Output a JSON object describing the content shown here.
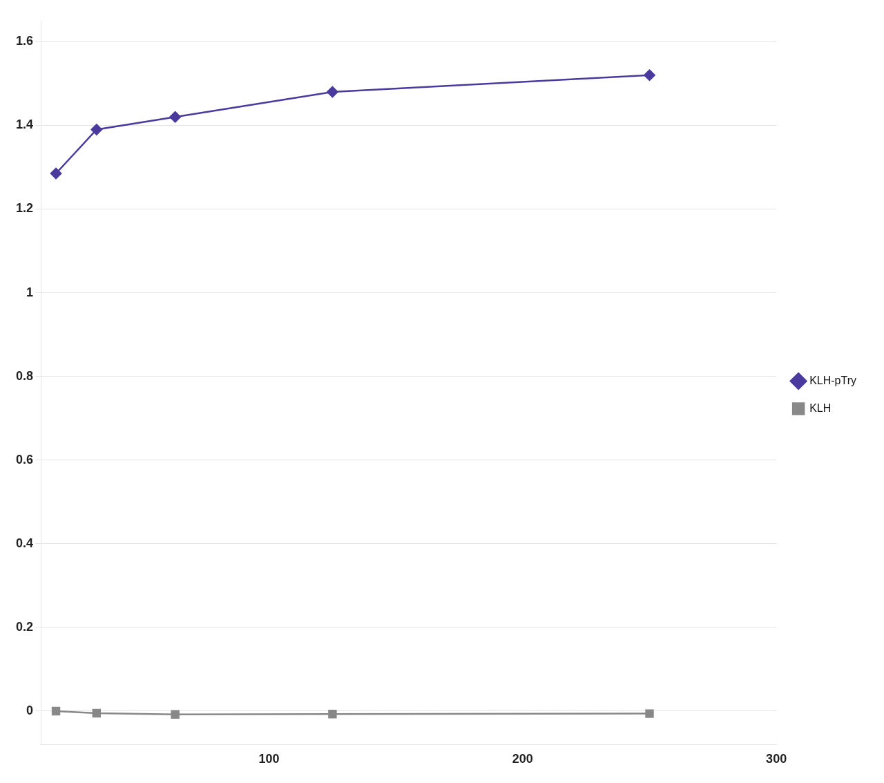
{
  "chart_data": {
    "type": "line",
    "series": [
      {
        "name": "KLH-pTry",
        "color": "#4b3a9e",
        "marker": "diamond",
        "x": [
          16,
          32,
          63,
          125,
          250
        ],
        "values": [
          1.285,
          1.39,
          1.42,
          1.48,
          1.52
        ]
      },
      {
        "name": "KLH",
        "color": "#888888",
        "marker": "square",
        "x": [
          16,
          32,
          63,
          125,
          250
        ],
        "values": [
          0.0,
          -0.005,
          -0.008,
          -0.007,
          -0.006
        ]
      }
    ],
    "xlim": [
      10,
      300
    ],
    "xticks": [
      100,
      200,
      300
    ],
    "ylim": [
      -0.08,
      1.65
    ],
    "yticks": [
      0,
      0.2,
      0.4,
      0.6,
      0.8,
      1,
      1.2,
      1.4,
      1.6
    ],
    "grid": "y",
    "legend": "right"
  }
}
